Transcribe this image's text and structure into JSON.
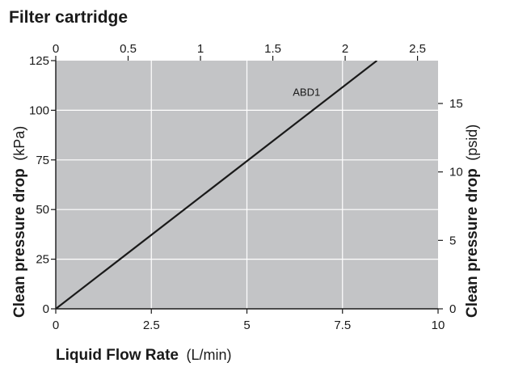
{
  "chart_data": {
    "type": "line",
    "title": "Filter cartridge",
    "plot_background": "#c3c4c6",
    "grid_color": "#ffffff",
    "line_color": "#1a1a1a",
    "grid": true,
    "x_axis_bottom": {
      "label": "Liquid Flow Rate",
      "unit": "(L/min)",
      "range": [
        0,
        10
      ],
      "ticks": [
        0,
        2.5,
        5,
        7.5,
        10
      ],
      "tick_labels": [
        "0",
        "2.5",
        "5",
        "7.5",
        "10"
      ]
    },
    "x_axis_top": {
      "range": [
        0,
        2.642
      ],
      "ticks": [
        0,
        0.5,
        1,
        1.5,
        2,
        2.5
      ],
      "tick_labels": [
        "0",
        "0.5",
        "1",
        "1.5",
        "2",
        "2.5"
      ]
    },
    "y_axis_left": {
      "label": "Clean pressure drop",
      "unit": "(kPa)",
      "range": [
        0,
        125
      ],
      "ticks": [
        0,
        25,
        50,
        75,
        100,
        125
      ],
      "tick_labels": [
        "0",
        "25",
        "50",
        "75",
        "100",
        "125"
      ]
    },
    "y_axis_right": {
      "label": "Clean pressure drop",
      "unit": "(psid)",
      "range": [
        0,
        18.13
      ],
      "ticks": [
        0,
        5,
        10,
        15
      ],
      "tick_labels": [
        "0",
        "5",
        "10",
        "15"
      ]
    },
    "series": [
      {
        "name": "ABD1",
        "x": [
          0,
          8.4
        ],
        "y": [
          0,
          125
        ]
      }
    ],
    "annotations": [
      {
        "text": "ABD1",
        "x": 6.2,
        "y": 104
      }
    ]
  }
}
